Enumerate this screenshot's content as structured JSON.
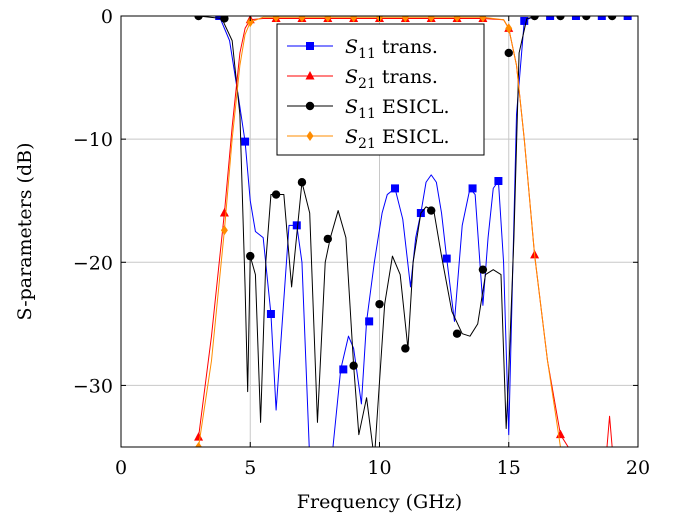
{
  "chart_data": {
    "type": "line",
    "title": "",
    "xlabel": "Frequency (GHz)",
    "ylabel": "S-parameters (dB)",
    "xlim": [
      0,
      20
    ],
    "ylim": [
      -35,
      0
    ],
    "xticks": [
      "0",
      "5",
      "10",
      "15",
      "20"
    ],
    "yticks": [
      "0",
      "−10",
      "−20",
      "−30"
    ],
    "grid": true,
    "legend": "top-center",
    "series": [
      {
        "name": "S11 trans.",
        "label_main": "S",
        "label_sub": "11",
        "label_rest": " trans.",
        "color": "#0000ff",
        "marker": "square",
        "x": [
          3.0,
          3.8,
          4.2,
          4.5,
          4.8,
          5.0,
          5.2,
          5.5,
          5.8,
          6.0,
          6.2,
          6.5,
          6.8,
          7.0,
          7.3,
          7.6,
          7.9,
          8.2,
          8.5,
          8.8,
          9.0,
          9.3,
          9.5,
          9.8,
          10.1,
          10.3,
          10.6,
          10.9,
          11.2,
          11.4,
          11.6,
          11.8,
          12.0,
          12.2,
          12.4,
          12.6,
          12.9,
          13.2,
          13.5,
          13.7,
          14.0,
          14.2,
          14.4,
          14.6,
          14.8,
          15.0,
          15.3,
          15.6,
          16.0,
          17.0,
          18.0,
          19.0,
          19.8
        ],
        "y": [
          0,
          0,
          -2,
          -6,
          -10.2,
          -15,
          -17.5,
          -18,
          -24.2,
          -32,
          -26,
          -17,
          -17,
          -20,
          -36,
          -36,
          -36,
          -35,
          -28.7,
          -26,
          -27,
          -31.5,
          -24.8,
          -20,
          -16,
          -14.5,
          -14,
          -16.5,
          -22,
          -18,
          -16,
          -13.5,
          -12.9,
          -13.5,
          -16,
          -19.7,
          -24.8,
          -17,
          -14,
          -14.5,
          -23.5,
          -18,
          -14,
          -13.4,
          -20,
          -34,
          -8,
          -0.4,
          0,
          0,
          0,
          0,
          0
        ],
        "markers_x": [
          3.8,
          4.8,
          5.8,
          6.8,
          8.6,
          9.6,
          10.6,
          11.6,
          12.6,
          13.6,
          14.6,
          15.6,
          16.6,
          17.6,
          18.6,
          19.6
        ],
        "markers_y": [
          0,
          -10.2,
          -24.2,
          -17,
          -28.7,
          -24.8,
          -14,
          -16,
          -19.7,
          -14,
          -13.4,
          -0.4,
          0,
          0,
          0,
          0
        ]
      },
      {
        "name": "S21 trans.",
        "label_main": "S",
        "label_sub": "21",
        "label_rest": " trans.",
        "color": "#ff0000",
        "marker": "triangle",
        "x": [
          3.0,
          3.5,
          4.0,
          4.3,
          4.6,
          4.8,
          5.0,
          5.5,
          6.0,
          7.0,
          8.0,
          9.0,
          10.0,
          11.0,
          12.0,
          13.0,
          14.0,
          14.8,
          15.0,
          15.3,
          15.6,
          16.0,
          16.5,
          17.0,
          17.3,
          17.6,
          18.0,
          18.8,
          18.9,
          19.0
        ],
        "y": [
          -34.2,
          -26,
          -16,
          -9,
          -3,
          -1,
          -0.3,
          -0.2,
          -0.2,
          -0.2,
          -0.2,
          -0.2,
          -0.2,
          -0.2,
          -0.2,
          -0.2,
          -0.2,
          -0.3,
          -1,
          -4,
          -10,
          -19.4,
          -28,
          -34,
          -35,
          -35,
          -35,
          -35,
          -32.5,
          -35
        ],
        "markers_x": [
          3.0,
          4.0,
          5.0,
          6.0,
          7.0,
          8.0,
          9.0,
          10.0,
          11.0,
          12.0,
          13.0,
          14.0,
          15.0,
          16.0,
          17.0
        ],
        "markers_y": [
          -34.2,
          -16,
          -0.3,
          -0.2,
          -0.2,
          -0.2,
          -0.2,
          -0.2,
          -0.2,
          -0.2,
          -0.2,
          -0.2,
          -1,
          -19.4,
          -34
        ]
      },
      {
        "name": "S11 ESICL.",
        "label_main": "S",
        "label_sub": "11",
        "label_rest": " ESICL.",
        "color": "#000000",
        "marker": "circle",
        "x": [
          3.0,
          3.9,
          4.3,
          4.6,
          4.8,
          4.9,
          5.0,
          5.2,
          5.4,
          5.6,
          5.8,
          6.0,
          6.3,
          6.6,
          7.0,
          7.3,
          7.6,
          7.9,
          8.1,
          8.4,
          8.7,
          9.0,
          9.2,
          9.5,
          9.8,
          10.2,
          10.5,
          10.8,
          11.1,
          11.3,
          11.6,
          11.8,
          12.1,
          12.4,
          12.8,
          13.2,
          13.5,
          13.8,
          14.1,
          14.4,
          14.7,
          14.9,
          15.0,
          15.2,
          15.4,
          15.7,
          16.2,
          17.0,
          18.0,
          19.0,
          19.7
        ],
        "y": [
          0,
          -0.2,
          -2,
          -8,
          -22,
          -30.5,
          -19.5,
          -21,
          -33,
          -20,
          -14.5,
          -14.5,
          -14.5,
          -22,
          -13.5,
          -16,
          -33,
          -20,
          -18,
          -15.8,
          -18,
          -28.4,
          -34,
          -31,
          -36,
          -23.4,
          -19.5,
          -21,
          -27,
          -20,
          -16,
          -15.5,
          -15.8,
          -19.5,
          -24,
          -25.8,
          -26,
          -25,
          -21,
          -20.6,
          -21,
          -33.5,
          -29,
          -18,
          -3,
          -0.2,
          0,
          0,
          0,
          0,
          0
        ],
        "markers_x": [
          3.0,
          4.0,
          5.0,
          6.0,
          7.0,
          8.0,
          9.0,
          10.0,
          11.0,
          12.0,
          13.0,
          14.0,
          15.0,
          16.0,
          17.0,
          18.0,
          19.0
        ],
        "markers_y": [
          0,
          -0.2,
          -19.5,
          -14.5,
          -13.5,
          -18.1,
          -28.4,
          -23.4,
          -27,
          -15.8,
          -25.8,
          -20.6,
          -3,
          0,
          0,
          0,
          0
        ]
      },
      {
        "name": "S21 ESICL.",
        "label_main": "S",
        "label_sub": "21",
        "label_rest": " ESICL.",
        "color": "#ff8c00",
        "marker": "diamond",
        "x": [
          3.0,
          3.5,
          4.0,
          4.3,
          4.6,
          4.8,
          5.0,
          5.5,
          6.0,
          7.0,
          8.0,
          9.0,
          10.0,
          11.0,
          12.0,
          13.0,
          14.0,
          14.8,
          15.0,
          15.3,
          15.6,
          16.0,
          16.5,
          17.0
        ],
        "y": [
          -35,
          -28,
          -17.4,
          -10,
          -4,
          -1.5,
          -0.5,
          -0.1,
          -0.1,
          -0.1,
          -0.1,
          -0.1,
          -0.1,
          -0.1,
          -0.1,
          -0.1,
          -0.1,
          -0.3,
          -1,
          -4,
          -10,
          -19.4,
          -28,
          -35
        ],
        "markers_x": [
          3.0,
          4.0,
          5.0,
          6.0,
          7.0,
          8.0,
          9.0,
          10.0,
          11.0,
          12.0,
          13.0,
          14.0,
          15.0
        ],
        "markers_y": [
          -35,
          -17.4,
          -0.5,
          -0.1,
          -0.1,
          -0.1,
          -0.1,
          -0.1,
          -0.1,
          -0.1,
          -0.1,
          -0.1,
          -1
        ]
      }
    ]
  }
}
